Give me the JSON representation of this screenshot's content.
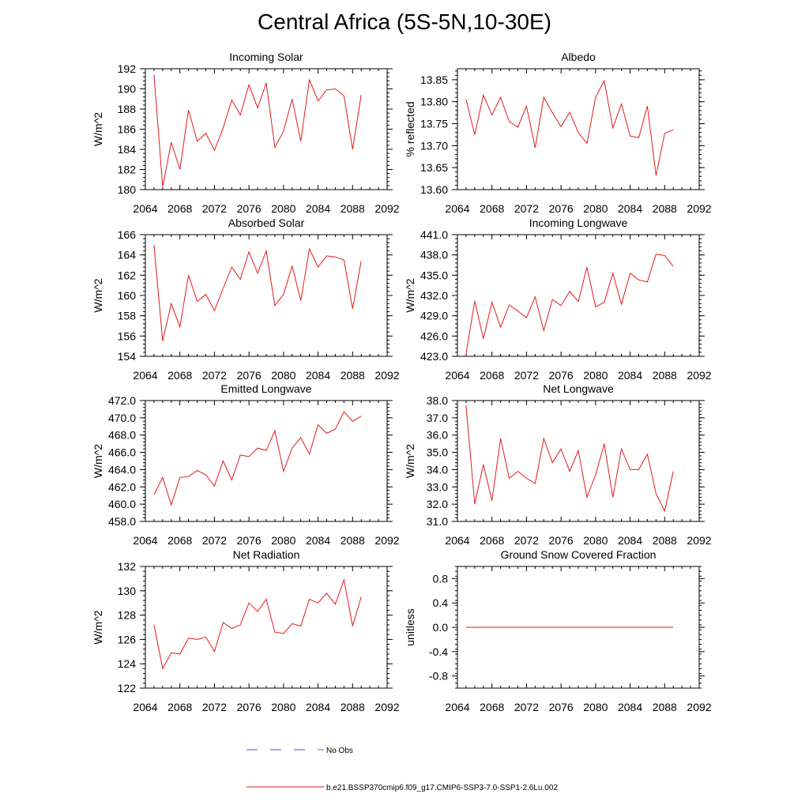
{
  "figure_title": "Central Africa (5S-5N,10-30E)",
  "legend": {
    "entries": [
      {
        "label": "No Obs",
        "color": "#4a5bd1",
        "style": "dashed"
      },
      {
        "label": "b.e21.BSSP370cmip6.f09_g17.CMIP6-SSP3-7.0-SSP1-2.6Lu.002",
        "color": "#e31a1c",
        "style": "solid"
      }
    ]
  },
  "colors": {
    "model_line": "#e31a1c",
    "axis": "#000000"
  },
  "chart_data": [
    {
      "type": "line",
      "title": "Incoming Solar",
      "ylabel": "W/m^2",
      "xlim": [
        2064,
        2092
      ],
      "xticks": [
        "2064",
        "2068",
        "2072",
        "2076",
        "2080",
        "2084",
        "2088",
        "2092"
      ],
      "ylim": [
        180,
        192
      ],
      "yticks": [
        "180",
        "182",
        "184",
        "186",
        "188",
        "190",
        "192"
      ],
      "x": [
        2065,
        2066,
        2067,
        2068,
        2069,
        2070,
        2071,
        2072,
        2073,
        2074,
        2075,
        2076,
        2077,
        2078,
        2079,
        2080,
        2081,
        2082,
        2083,
        2084,
        2085,
        2086,
        2087,
        2088,
        2089
      ],
      "series": [
        {
          "values": [
            191.4,
            180.3,
            184.7,
            182.0,
            187.9,
            184.8,
            185.6,
            183.9,
            186.1,
            188.9,
            187.4,
            190.4,
            188.1,
            190.6,
            184.2,
            185.8,
            189.0,
            184.8,
            190.9,
            188.8,
            189.9,
            190.0,
            189.3,
            184.0,
            189.4
          ]
        }
      ]
    },
    {
      "type": "line",
      "title": "Albedo",
      "ylabel": "% reflected",
      "xlim": [
        2064,
        2092
      ],
      "xticks": [
        "2064",
        "2068",
        "2072",
        "2076",
        "2080",
        "2084",
        "2088",
        "2092"
      ],
      "ylim": [
        13.6,
        13.875
      ],
      "yticks": [
        "13.60",
        "13.65",
        "13.70",
        "13.75",
        "13.80",
        "13.85"
      ],
      "x": [
        2065,
        2066,
        2067,
        2068,
        2069,
        2070,
        2071,
        2072,
        2073,
        2074,
        2075,
        2076,
        2077,
        2078,
        2079,
        2080,
        2081,
        2082,
        2083,
        2084,
        2085,
        2086,
        2087,
        2088,
        2089
      ],
      "series": [
        {
          "values": [
            13.805,
            13.725,
            13.815,
            13.77,
            13.81,
            13.755,
            13.742,
            13.79,
            13.695,
            13.81,
            13.775,
            13.743,
            13.776,
            13.73,
            13.705,
            13.81,
            13.848,
            13.74,
            13.795,
            13.722,
            13.718,
            13.79,
            13.632,
            13.728,
            13.736
          ]
        }
      ]
    },
    {
      "type": "line",
      "title": "Absorbed Solar",
      "ylabel": "W/m^2",
      "xlim": [
        2064,
        2092
      ],
      "xticks": [
        "2064",
        "2068",
        "2072",
        "2076",
        "2080",
        "2084",
        "2088",
        "2092"
      ],
      "ylim": [
        154,
        166
      ],
      "yticks": [
        "154",
        "156",
        "158",
        "160",
        "162",
        "164",
        "166"
      ],
      "x": [
        2065,
        2066,
        2067,
        2068,
        2069,
        2070,
        2071,
        2072,
        2073,
        2074,
        2075,
        2076,
        2077,
        2078,
        2079,
        2080,
        2081,
        2082,
        2083,
        2084,
        2085,
        2086,
        2087,
        2088,
        2089
      ],
      "series": [
        {
          "values": [
            165.0,
            155.5,
            159.2,
            156.9,
            162.0,
            159.4,
            160.1,
            158.5,
            160.7,
            162.8,
            161.6,
            164.3,
            162.2,
            164.4,
            159.0,
            160.1,
            162.9,
            159.5,
            164.6,
            162.8,
            163.9,
            163.8,
            163.5,
            158.7,
            163.4
          ]
        }
      ]
    },
    {
      "type": "line",
      "title": "Incoming Longwave",
      "ylabel": "W/m^2",
      "xlim": [
        2064,
        2092
      ],
      "xticks": [
        "2064",
        "2068",
        "2072",
        "2076",
        "2080",
        "2084",
        "2088",
        "2092"
      ],
      "ylim": [
        423,
        441
      ],
      "yticks": [
        "423.0",
        "426.0",
        "429.0",
        "432.0",
        "435.0",
        "438.0",
        "441.0"
      ],
      "x": [
        2065,
        2066,
        2067,
        2068,
        2069,
        2070,
        2071,
        2072,
        2073,
        2074,
        2075,
        2076,
        2077,
        2078,
        2079,
        2080,
        2081,
        2082,
        2083,
        2084,
        2085,
        2086,
        2087,
        2088,
        2089
      ],
      "series": [
        {
          "values": [
            423.3,
            431.2,
            425.6,
            431.0,
            427.3,
            430.6,
            429.7,
            428.7,
            431.8,
            426.8,
            431.4,
            430.5,
            432.6,
            431.1,
            436.2,
            430.3,
            431.0,
            435.3,
            430.7,
            435.3,
            434.3,
            434.0,
            438.1,
            437.9,
            436.3
          ]
        }
      ]
    },
    {
      "type": "line",
      "title": "Emitted Longwave",
      "ylabel": "W/m^2",
      "xlim": [
        2064,
        2092
      ],
      "xticks": [
        "2064",
        "2068",
        "2072",
        "2076",
        "2080",
        "2084",
        "2088",
        "2092"
      ],
      "ylim": [
        458,
        472
      ],
      "yticks": [
        "458.0",
        "460.0",
        "462.0",
        "464.0",
        "466.0",
        "468.0",
        "470.0",
        "472.0"
      ],
      "x": [
        2065,
        2066,
        2067,
        2068,
        2069,
        2070,
        2071,
        2072,
        2073,
        2074,
        2075,
        2076,
        2077,
        2078,
        2079,
        2080,
        2081,
        2082,
        2083,
        2084,
        2085,
        2086,
        2087,
        2088,
        2089
      ],
      "series": [
        {
          "values": [
            461.1,
            463.1,
            459.9,
            463.1,
            463.2,
            463.9,
            463.4,
            462.1,
            465.0,
            462.8,
            465.7,
            465.5,
            466.5,
            466.2,
            468.5,
            463.8,
            466.5,
            467.7,
            465.8,
            469.2,
            468.2,
            468.7,
            470.7,
            469.6,
            470.2
          ]
        }
      ]
    },
    {
      "type": "line",
      "title": "Net Longwave",
      "ylabel": "W/m^2",
      "xlim": [
        2064,
        2092
      ],
      "xticks": [
        "2064",
        "2068",
        "2072",
        "2076",
        "2080",
        "2084",
        "2088",
        "2092"
      ],
      "ylim": [
        31,
        38
      ],
      "yticks": [
        "31.0",
        "32.0",
        "33.0",
        "34.0",
        "35.0",
        "36.0",
        "37.0",
        "38.0"
      ],
      "x": [
        2065,
        2066,
        2067,
        2068,
        2069,
        2070,
        2071,
        2072,
        2073,
        2074,
        2075,
        2076,
        2077,
        2078,
        2079,
        2080,
        2081,
        2082,
        2083,
        2084,
        2085,
        2086,
        2087,
        2088,
        2089
      ],
      "series": [
        {
          "values": [
            37.7,
            32.0,
            34.3,
            32.2,
            35.8,
            33.5,
            33.9,
            33.5,
            33.2,
            35.8,
            34.4,
            35.2,
            33.9,
            35.1,
            32.4,
            33.7,
            35.5,
            32.4,
            35.2,
            34.0,
            34.0,
            34.9,
            32.6,
            31.6,
            33.9
          ]
        }
      ]
    },
    {
      "type": "line",
      "title": "Net Radiation",
      "ylabel": "W/m^2",
      "xlim": [
        2064,
        2092
      ],
      "xticks": [
        "2064",
        "2068",
        "2072",
        "2076",
        "2080",
        "2084",
        "2088",
        "2092"
      ],
      "ylim": [
        122,
        132
      ],
      "yticks": [
        "122",
        "124",
        "126",
        "128",
        "130",
        "132"
      ],
      "x": [
        2065,
        2066,
        2067,
        2068,
        2069,
        2070,
        2071,
        2072,
        2073,
        2074,
        2075,
        2076,
        2077,
        2078,
        2079,
        2080,
        2081,
        2082,
        2083,
        2084,
        2085,
        2086,
        2087,
        2088,
        2089
      ],
      "series": [
        {
          "values": [
            127.2,
            123.6,
            124.9,
            124.8,
            126.1,
            126.0,
            126.2,
            125.0,
            127.4,
            126.9,
            127.2,
            129.0,
            128.3,
            129.3,
            126.6,
            126.5,
            127.3,
            127.1,
            129.3,
            129.0,
            129.8,
            128.9,
            130.9,
            127.1,
            129.5
          ]
        }
      ]
    },
    {
      "type": "line",
      "title": "Ground Snow Covered Fraction",
      "ylabel": "unitless",
      "xlim": [
        2064,
        2092
      ],
      "xticks": [
        "2064",
        "2068",
        "2072",
        "2076",
        "2080",
        "2084",
        "2088",
        "2092"
      ],
      "ylim": [
        -1.0,
        1.0
      ],
      "yticks": [
        "-0.8",
        "-0.4",
        "0.0",
        "0.4",
        "0.8"
      ],
      "ytick_values": [
        -0.8,
        -0.4,
        0.0,
        0.4,
        0.8
      ],
      "x": [
        2065,
        2089
      ],
      "series": [
        {
          "values": [
            0.0,
            0.0
          ]
        }
      ]
    }
  ]
}
